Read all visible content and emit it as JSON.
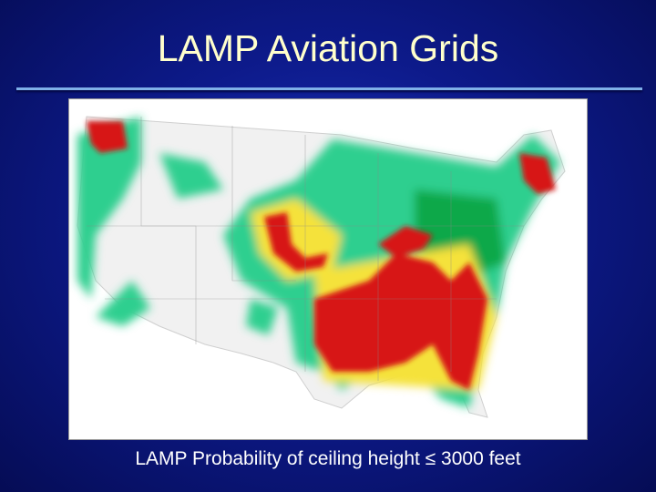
{
  "slide": {
    "title": "LAMP Aviation Grids",
    "caption": "LAMP Probability of ceiling height ≤ 3000 feet"
  }
}
